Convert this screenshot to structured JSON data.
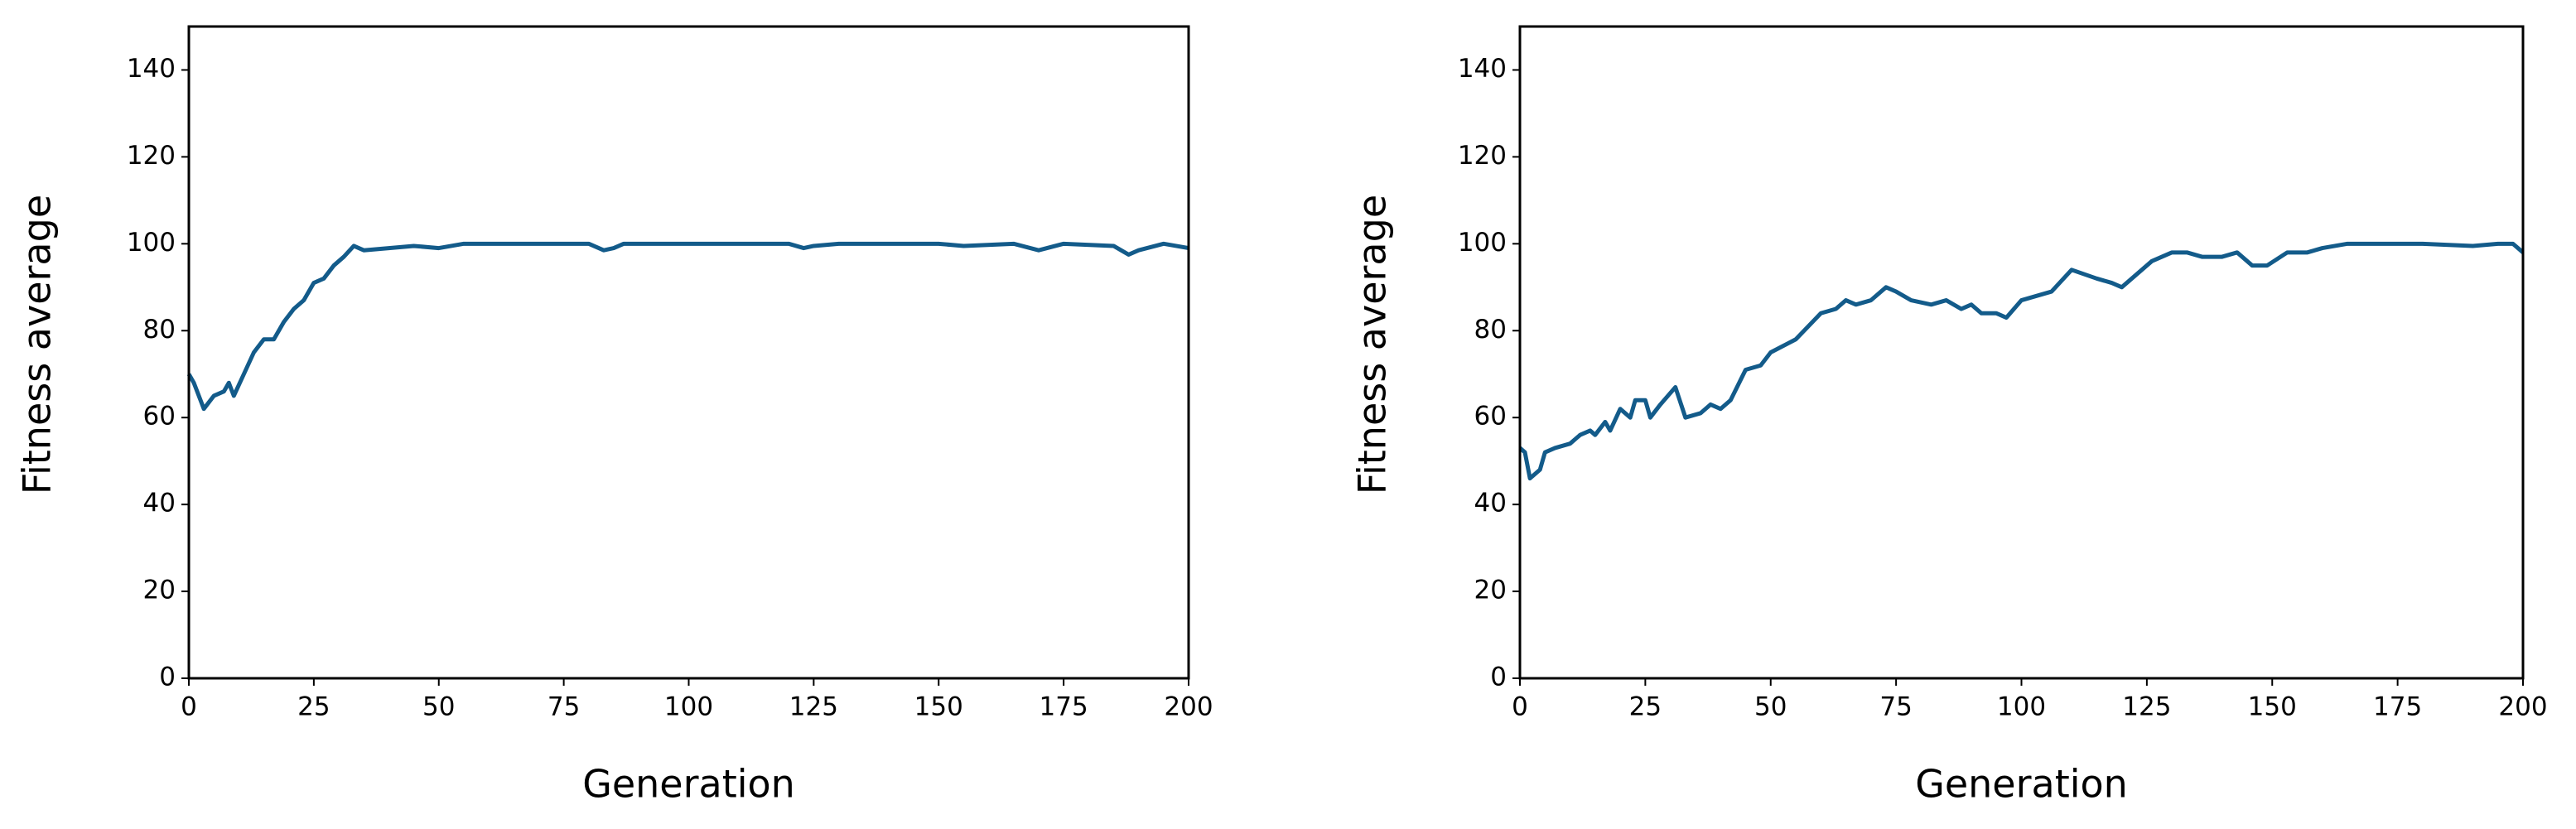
{
  "chart_data": [
    {
      "type": "line",
      "xlabel": "Generation",
      "ylabel": "Fitness average",
      "color": "#135b8a",
      "xlim": [
        0,
        200
      ],
      "ylim": [
        0,
        150
      ],
      "xticks": [
        0,
        25,
        50,
        75,
        100,
        125,
        150,
        175,
        200
      ],
      "yticks": [
        0,
        20,
        40,
        60,
        80,
        100,
        120,
        140
      ],
      "x": [
        0,
        1,
        3,
        5,
        7,
        8,
        9,
        11,
        13,
        15,
        17,
        19,
        21,
        23,
        25,
        27,
        29,
        31,
        33,
        35,
        40,
        45,
        50,
        55,
        60,
        70,
        80,
        83,
        85,
        87,
        100,
        120,
        123,
        125,
        130,
        150,
        155,
        165,
        170,
        175,
        185,
        188,
        190,
        195,
        200
      ],
      "values": [
        70,
        68,
        62,
        65,
        66,
        68,
        65,
        70,
        75,
        78,
        78,
        82,
        85,
        87,
        91,
        92,
        95,
        97,
        99.5,
        98.5,
        99,
        99.5,
        99,
        100,
        100,
        100,
        100,
        98.5,
        99,
        100,
        100,
        100,
        99,
        99.5,
        100,
        100,
        99.5,
        100,
        98.5,
        100,
        99.5,
        97.5,
        98.5,
        100,
        99
      ]
    },
    {
      "type": "line",
      "xlabel": "Generation",
      "ylabel": "Fitness average",
      "color": "#135b8a",
      "xlim": [
        0,
        200
      ],
      "ylim": [
        0,
        150
      ],
      "xticks": [
        0,
        25,
        50,
        75,
        100,
        125,
        150,
        175,
        200
      ],
      "yticks": [
        0,
        20,
        40,
        60,
        80,
        100,
        120,
        140
      ],
      "x": [
        0,
        1,
        2,
        3,
        4,
        5,
        7,
        10,
        12,
        14,
        15,
        17,
        18,
        20,
        22,
        23,
        25,
        26,
        28,
        31,
        33,
        36,
        38,
        40,
        42,
        45,
        48,
        50,
        55,
        60,
        63,
        65,
        67,
        70,
        73,
        75,
        78,
        82,
        85,
        88,
        90,
        92,
        95,
        97,
        100,
        103,
        106,
        110,
        115,
        118,
        120,
        123,
        126,
        130,
        133,
        136,
        140,
        143,
        146,
        149,
        153,
        157,
        160,
        165,
        180,
        190,
        195,
        198,
        200
      ],
      "values": [
        53,
        52,
        46,
        47,
        48,
        52,
        53,
        54,
        56,
        57,
        56,
        59,
        57,
        62,
        60,
        64,
        64,
        60,
        63,
        67,
        60,
        61,
        63,
        62,
        64,
        71,
        72,
        75,
        78,
        84,
        85,
        87,
        86,
        87,
        90,
        89,
        87,
        86,
        87,
        85,
        86,
        84,
        84,
        83,
        87,
        88,
        89,
        94,
        92,
        91,
        90,
        93,
        96,
        98,
        98,
        97,
        97,
        98,
        95,
        95,
        98,
        98,
        99,
        100,
        100,
        99.5,
        100,
        100,
        98
      ]
    }
  ]
}
